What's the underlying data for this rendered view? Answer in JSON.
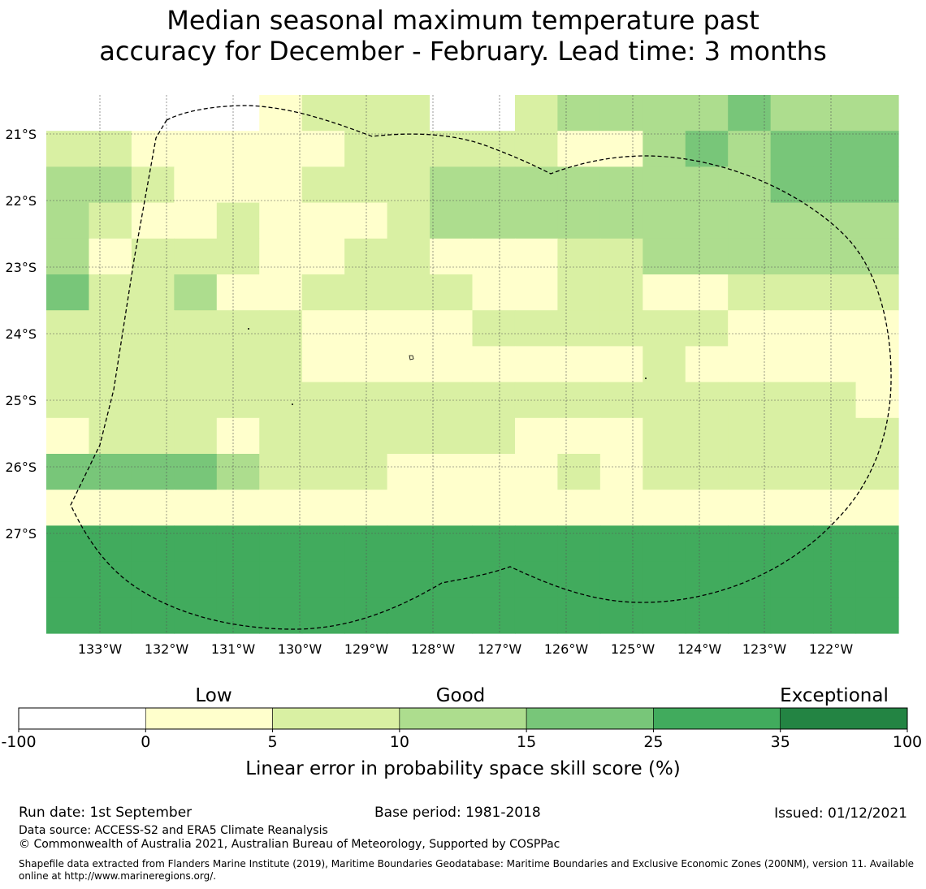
{
  "title": {
    "line1": "Median seasonal maximum temperature past",
    "line2": "accuracy for December - February. Lead time: 3 months"
  },
  "map": {
    "lat_labels": [
      "21°S",
      "22°S",
      "23°S",
      "24°S",
      "25°S",
      "26°S",
      "27°S"
    ],
    "lon_labels": [
      "133°W",
      "132°W",
      "131°W",
      "130°W",
      "129°W",
      "128°W",
      "127°W",
      "126°W",
      "125°W",
      "124°W",
      "123°W",
      "122°W"
    ],
    "grid": [
      "00000122200233334333",
      "22111112222211343444",
      "33211122233333333444",
      "32112111233333333333",
      "31222112211122333333",
      "42231122221122112222",
      "22222211112222221111",
      "22222211111111211111",
      "22222222222222222221",
      "12221222222111222222",
      "44443222111121222222",
      "11111111111111111111",
      "55555555555555555555",
      "55555555555555555555",
      "55555555555555555555"
    ]
  },
  "colorbar": {
    "category_labels": [
      "Low",
      "Good",
      "Exceptional"
    ],
    "ticks": [
      "-100",
      "0",
      "5",
      "10",
      "15",
      "25",
      "35",
      "100"
    ],
    "colors": [
      "#ffffff",
      "#ffffcc",
      "#d9f0a3",
      "#addd8e",
      "#78c679",
      "#41ab5d",
      "#238443"
    ],
    "label": "Linear error in probability space skill score (%)"
  },
  "footer": {
    "run_date": "Run date: 1st September",
    "base_period": "Base period: 1981-2018",
    "issued": "Issued: 01/12/2021",
    "data_source": "Data source: ACCESS-S2 and ERA5 Climate Reanalysis",
    "copyright": "© Commonwealth of Australia 2021, Australian Bureau of Meteorology, Supported by COSPPac",
    "shapefile": "Shapefile data extracted from Flanders Marine Institute (2019), Maritime Boundaries Geodatabase: Maritime Boundaries and Exclusive Economic Zones (200NM), version 11. Available online at http://www.marineregions.org/."
  }
}
